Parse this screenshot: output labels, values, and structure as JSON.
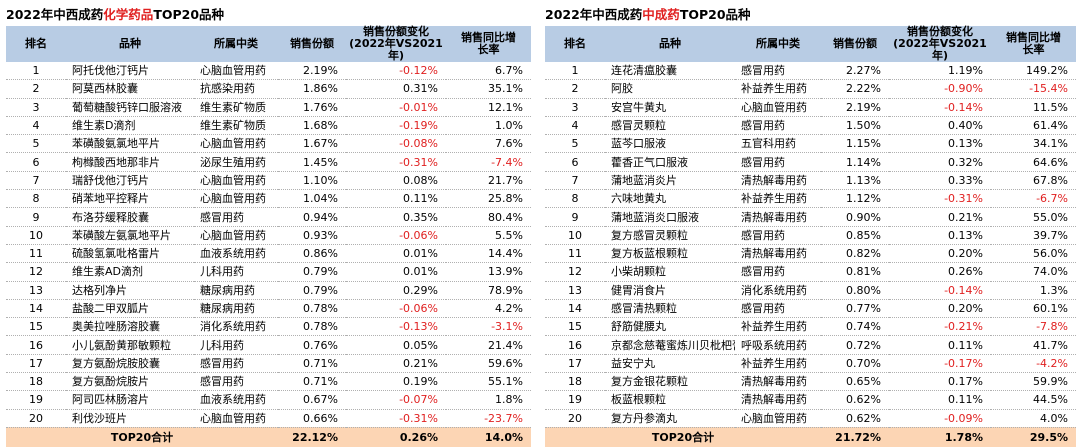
{
  "left_panel": {
    "title_prefix": "2022年中西成药",
    "title_highlight": "化学药品",
    "title_suffix": "TOP20品种",
    "headers": {
      "rank": "排名",
      "name": "品种",
      "category": "所属中类",
      "share": "销售份额",
      "change_line1": "销售份额变化",
      "change_line2": "(2022年VS2021年)",
      "growth_line1": "销售同比增",
      "growth_line2": "长率"
    },
    "rows": [
      {
        "rank": "1",
        "name": "阿托伐他汀钙片",
        "category": "心脑血管用药",
        "share": "2.19%",
        "change": "-0.12%",
        "growth": "6.7%"
      },
      {
        "rank": "2",
        "name": "阿莫西林胶囊",
        "category": "抗感染用药",
        "share": "1.86%",
        "change": "0.31%",
        "growth": "35.1%"
      },
      {
        "rank": "3",
        "name": "葡萄糖酸钙锌口服溶液",
        "category": "维生素矿物质",
        "share": "1.76%",
        "change": "-0.01%",
        "growth": "12.1%"
      },
      {
        "rank": "4",
        "name": "维生素D滴剂",
        "category": "维生素矿物质",
        "share": "1.68%",
        "change": "-0.19%",
        "growth": "1.0%"
      },
      {
        "rank": "5",
        "name": "苯磺酸氨氯地平片",
        "category": "心脑血管用药",
        "share": "1.67%",
        "change": "-0.08%",
        "growth": "7.6%"
      },
      {
        "rank": "6",
        "name": "枸橼酸西地那非片",
        "category": "泌尿生殖用药",
        "share": "1.45%",
        "change": "-0.31%",
        "growth": "-7.4%"
      },
      {
        "rank": "7",
        "name": "瑞舒伐他汀钙片",
        "category": "心脑血管用药",
        "share": "1.10%",
        "change": "0.08%",
        "growth": "21.7%"
      },
      {
        "rank": "8",
        "name": "硝苯地平控释片",
        "category": "心脑血管用药",
        "share": "1.04%",
        "change": "0.11%",
        "growth": "25.8%"
      },
      {
        "rank": "9",
        "name": "布洛芬缓释胶囊",
        "category": "感冒用药",
        "share": "0.94%",
        "change": "0.35%",
        "growth": "80.4%"
      },
      {
        "rank": "10",
        "name": "苯磺酸左氨氯地平片",
        "category": "心脑血管用药",
        "share": "0.93%",
        "change": "-0.06%",
        "growth": "5.5%"
      },
      {
        "rank": "11",
        "name": "硫酸氢氯吡格雷片",
        "category": "血液系统用药",
        "share": "0.86%",
        "change": "0.01%",
        "growth": "14.4%"
      },
      {
        "rank": "12",
        "name": "维生素AD滴剂",
        "category": "儿科用药",
        "share": "0.79%",
        "change": "0.01%",
        "growth": "13.9%"
      },
      {
        "rank": "13",
        "name": "达格列净片",
        "category": "糖尿病用药",
        "share": "0.79%",
        "change": "0.29%",
        "growth": "78.9%"
      },
      {
        "rank": "14",
        "name": "盐酸二甲双胍片",
        "category": "糖尿病用药",
        "share": "0.78%",
        "change": "-0.06%",
        "growth": "4.2%"
      },
      {
        "rank": "15",
        "name": "奥美拉唑肠溶胶囊",
        "category": "消化系统用药",
        "share": "0.78%",
        "change": "-0.13%",
        "growth": "-3.1%"
      },
      {
        "rank": "16",
        "name": "小儿氨酚黄那敏颗粒",
        "category": "儿科用药",
        "share": "0.76%",
        "change": "0.05%",
        "growth": "21.4%"
      },
      {
        "rank": "17",
        "name": "复方氨酚烷胺胶囊",
        "category": "感冒用药",
        "share": "0.71%",
        "change": "0.21%",
        "growth": "59.6%"
      },
      {
        "rank": "18",
        "name": "复方氨酚烷胺片",
        "category": "感冒用药",
        "share": "0.71%",
        "change": "0.19%",
        "growth": "55.1%"
      },
      {
        "rank": "19",
        "name": "阿司匹林肠溶片",
        "category": "血液系统用药",
        "share": "0.67%",
        "change": "-0.07%",
        "growth": "1.8%"
      },
      {
        "rank": "20",
        "name": "利伐沙班片",
        "category": "心脑血管用药",
        "share": "0.66%",
        "change": "-0.31%",
        "growth": "-23.7%"
      }
    ],
    "total": {
      "label": "TOP20合计",
      "share": "22.12%",
      "change": "0.26%",
      "growth": "14.0%"
    }
  },
  "right_panel": {
    "title_prefix": "2022年中西成药",
    "title_highlight": "中成药",
    "title_suffix": "TOP20品种",
    "headers": {
      "rank": "排名",
      "name": "品种",
      "category": "所属中类",
      "share": "销售份额",
      "change_line1": "销售份额变化",
      "change_line2": "(2022年VS2021年)",
      "growth_line1": "销售同比增",
      "growth_line2": "长率"
    },
    "rows": [
      {
        "rank": "1",
        "name": "连花清瘟胶囊",
        "category": "感冒用药",
        "share": "2.27%",
        "change": "1.19%",
        "growth": "149.2%"
      },
      {
        "rank": "2",
        "name": "阿胶",
        "category": "补益养生用药",
        "share": "2.22%",
        "change": "-0.90%",
        "growth": "-15.4%"
      },
      {
        "rank": "3",
        "name": "安宫牛黄丸",
        "category": "心脑血管用药",
        "share": "2.19%",
        "change": "-0.14%",
        "growth": "11.5%"
      },
      {
        "rank": "4",
        "name": "感冒灵颗粒",
        "category": "感冒用药",
        "share": "1.50%",
        "change": "0.40%",
        "growth": "61.4%"
      },
      {
        "rank": "5",
        "name": "蓝芩口服液",
        "category": "五官科用药",
        "share": "1.15%",
        "change": "0.13%",
        "growth": "34.1%"
      },
      {
        "rank": "6",
        "name": "藿香正气口服液",
        "category": "感冒用药",
        "share": "1.14%",
        "change": "0.32%",
        "growth": "64.6%"
      },
      {
        "rank": "7",
        "name": "蒲地蓝消炎片",
        "category": "清热解毒用药",
        "share": "1.13%",
        "change": "0.33%",
        "growth": "67.8%"
      },
      {
        "rank": "8",
        "name": "六味地黄丸",
        "category": "补益养生用药",
        "share": "1.12%",
        "change": "-0.31%",
        "growth": "-6.7%"
      },
      {
        "rank": "9",
        "name": "蒲地蓝消炎口服液",
        "category": "清热解毒用药",
        "share": "0.90%",
        "change": "0.21%",
        "growth": "55.0%"
      },
      {
        "rank": "10",
        "name": "复方感冒灵颗粒",
        "category": "感冒用药",
        "share": "0.85%",
        "change": "0.13%",
        "growth": "39.7%"
      },
      {
        "rank": "11",
        "name": "复方板蓝根颗粒",
        "category": "清热解毒用药",
        "share": "0.82%",
        "change": "0.20%",
        "growth": "56.0%"
      },
      {
        "rank": "12",
        "name": "小柴胡颗粒",
        "category": "感冒用药",
        "share": "0.81%",
        "change": "0.26%",
        "growth": "74.0%"
      },
      {
        "rank": "13",
        "name": "健胃消食片",
        "category": "消化系统用药",
        "share": "0.80%",
        "change": "-0.14%",
        "growth": "1.3%"
      },
      {
        "rank": "14",
        "name": "感冒清热颗粒",
        "category": "感冒用药",
        "share": "0.77%",
        "change": "0.20%",
        "growth": "60.1%"
      },
      {
        "rank": "15",
        "name": "舒筋健腰丸",
        "category": "补益养生用药",
        "share": "0.74%",
        "change": "-0.21%",
        "growth": "-7.8%"
      },
      {
        "rank": "16",
        "name": "京都念慈菴蜜炼川贝枇杷膏",
        "category": "呼吸系统用药",
        "share": "0.72%",
        "change": "0.11%",
        "growth": "41.7%"
      },
      {
        "rank": "17",
        "name": "益安宁丸",
        "category": "补益养生用药",
        "share": "0.70%",
        "change": "-0.17%",
        "growth": "-4.2%"
      },
      {
        "rank": "18",
        "name": "复方金银花颗粒",
        "category": "清热解毒用药",
        "share": "0.65%",
        "change": "0.17%",
        "growth": "59.9%"
      },
      {
        "rank": "19",
        "name": "板蓝根颗粒",
        "category": "清热解毒用药",
        "share": "0.62%",
        "change": "0.11%",
        "growth": "44.5%"
      },
      {
        "rank": "20",
        "name": "复方丹参滴丸",
        "category": "心脑血管用药",
        "share": "0.62%",
        "change": "-0.09%",
        "growth": "4.0%"
      }
    ],
    "total": {
      "label": "TOP20合计",
      "share": "21.72%",
      "change": "1.78%",
      "growth": "29.5%"
    }
  },
  "colors": {
    "header_bg": "#b8cce4",
    "total_bg": "#fcd5b4",
    "negative": "#e02020",
    "title_highlight": "#e02020"
  }
}
